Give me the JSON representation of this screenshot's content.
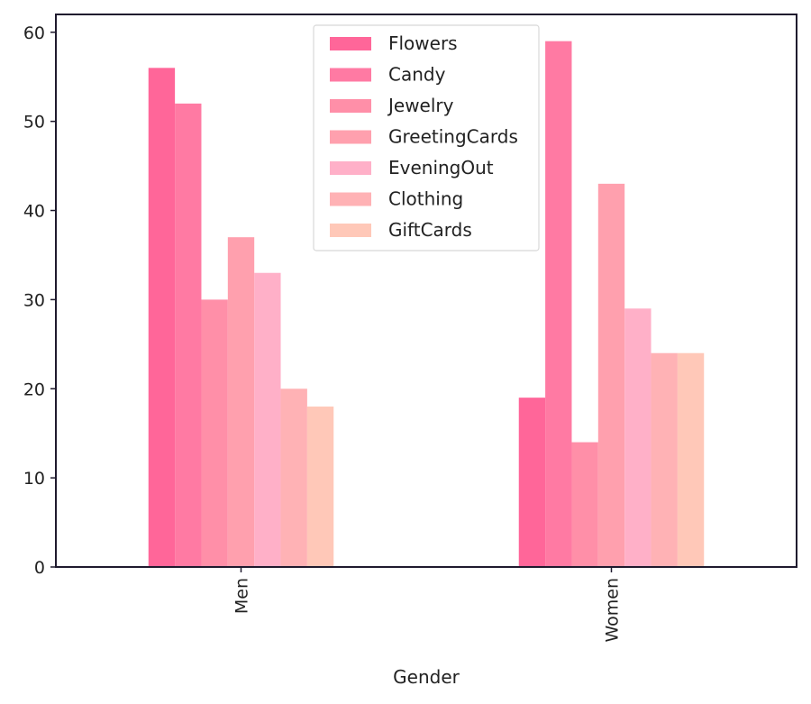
{
  "chart_data": {
    "type": "bar",
    "title": "",
    "xlabel": "Gender",
    "ylabel": "",
    "categories": [
      "Men",
      "Women"
    ],
    "series": [
      {
        "name": "Flowers",
        "values": [
          56,
          19
        ],
        "color": "#ff6699"
      },
      {
        "name": "Candy",
        "values": [
          52,
          59
        ],
        "color": "#ff7aa3"
      },
      {
        "name": "Jewelry",
        "values": [
          30,
          14
        ],
        "color": "#ff8fa8"
      },
      {
        "name": "GreetingCards",
        "values": [
          37,
          43
        ],
        "color": "#ffa0ae"
      },
      {
        "name": "EveningOut",
        "values": [
          33,
          29
        ],
        "color": "#ffb0c8"
      },
      {
        "name": "Clothing",
        "values": [
          20,
          24
        ],
        "color": "#ffb2b5"
      },
      {
        "name": "GiftCards",
        "values": [
          18,
          24
        ],
        "color": "#ffc8b8"
      }
    ],
    "ylim": [
      0,
      62
    ],
    "yticks": [
      0,
      10,
      20,
      30,
      40,
      50,
      60
    ],
    "grid": false,
    "legend": "top-center",
    "xtick_rotation": "vertical"
  }
}
